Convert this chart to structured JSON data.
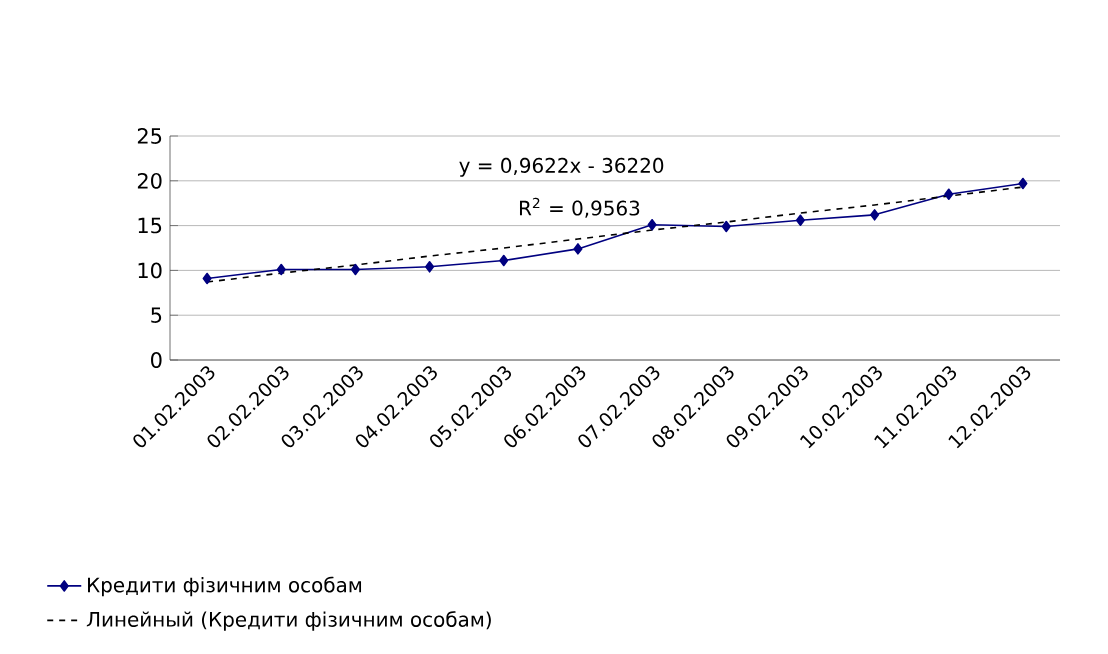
{
  "chart_data": {
    "type": "line",
    "categories": [
      "01.02.2003",
      "02.02.2003",
      "03.02.2003",
      "04.02.2003",
      "05.02.2003",
      "06.02.2003",
      "07.02.2003",
      "08.02.2003",
      "09.02.2003",
      "10.02.2003",
      "11.02.2003",
      "12.02.2003"
    ],
    "series": [
      {
        "name": "Кредити фізичним особам",
        "color": "#000080",
        "values": [
          9.1,
          10.1,
          10.1,
          10.4,
          11.1,
          12.4,
          15.1,
          14.9,
          15.6,
          16.2,
          18.5,
          19.7
        ]
      },
      {
        "name": "Линейный (Кредити фізичним особам)",
        "color": "#000000",
        "type": "line",
        "line_style": "dashed",
        "marker": "none",
        "values": [
          8.7,
          9.7,
          10.6,
          11.6,
          12.5,
          13.5,
          14.5,
          15.4,
          16.4,
          17.3,
          18.3,
          19.3
        ]
      }
    ],
    "annotations": [
      "y = 0,9622x - 36220",
      "R$^{2}$ = 0,9563"
    ],
    "ylim": [
      0,
      25
    ],
    "yticks": [
      0,
      5,
      10,
      15,
      20,
      25
    ],
    "grid": "y",
    "legend": "bottom left",
    "marker": "diamond",
    "line_style": "solid"
  }
}
